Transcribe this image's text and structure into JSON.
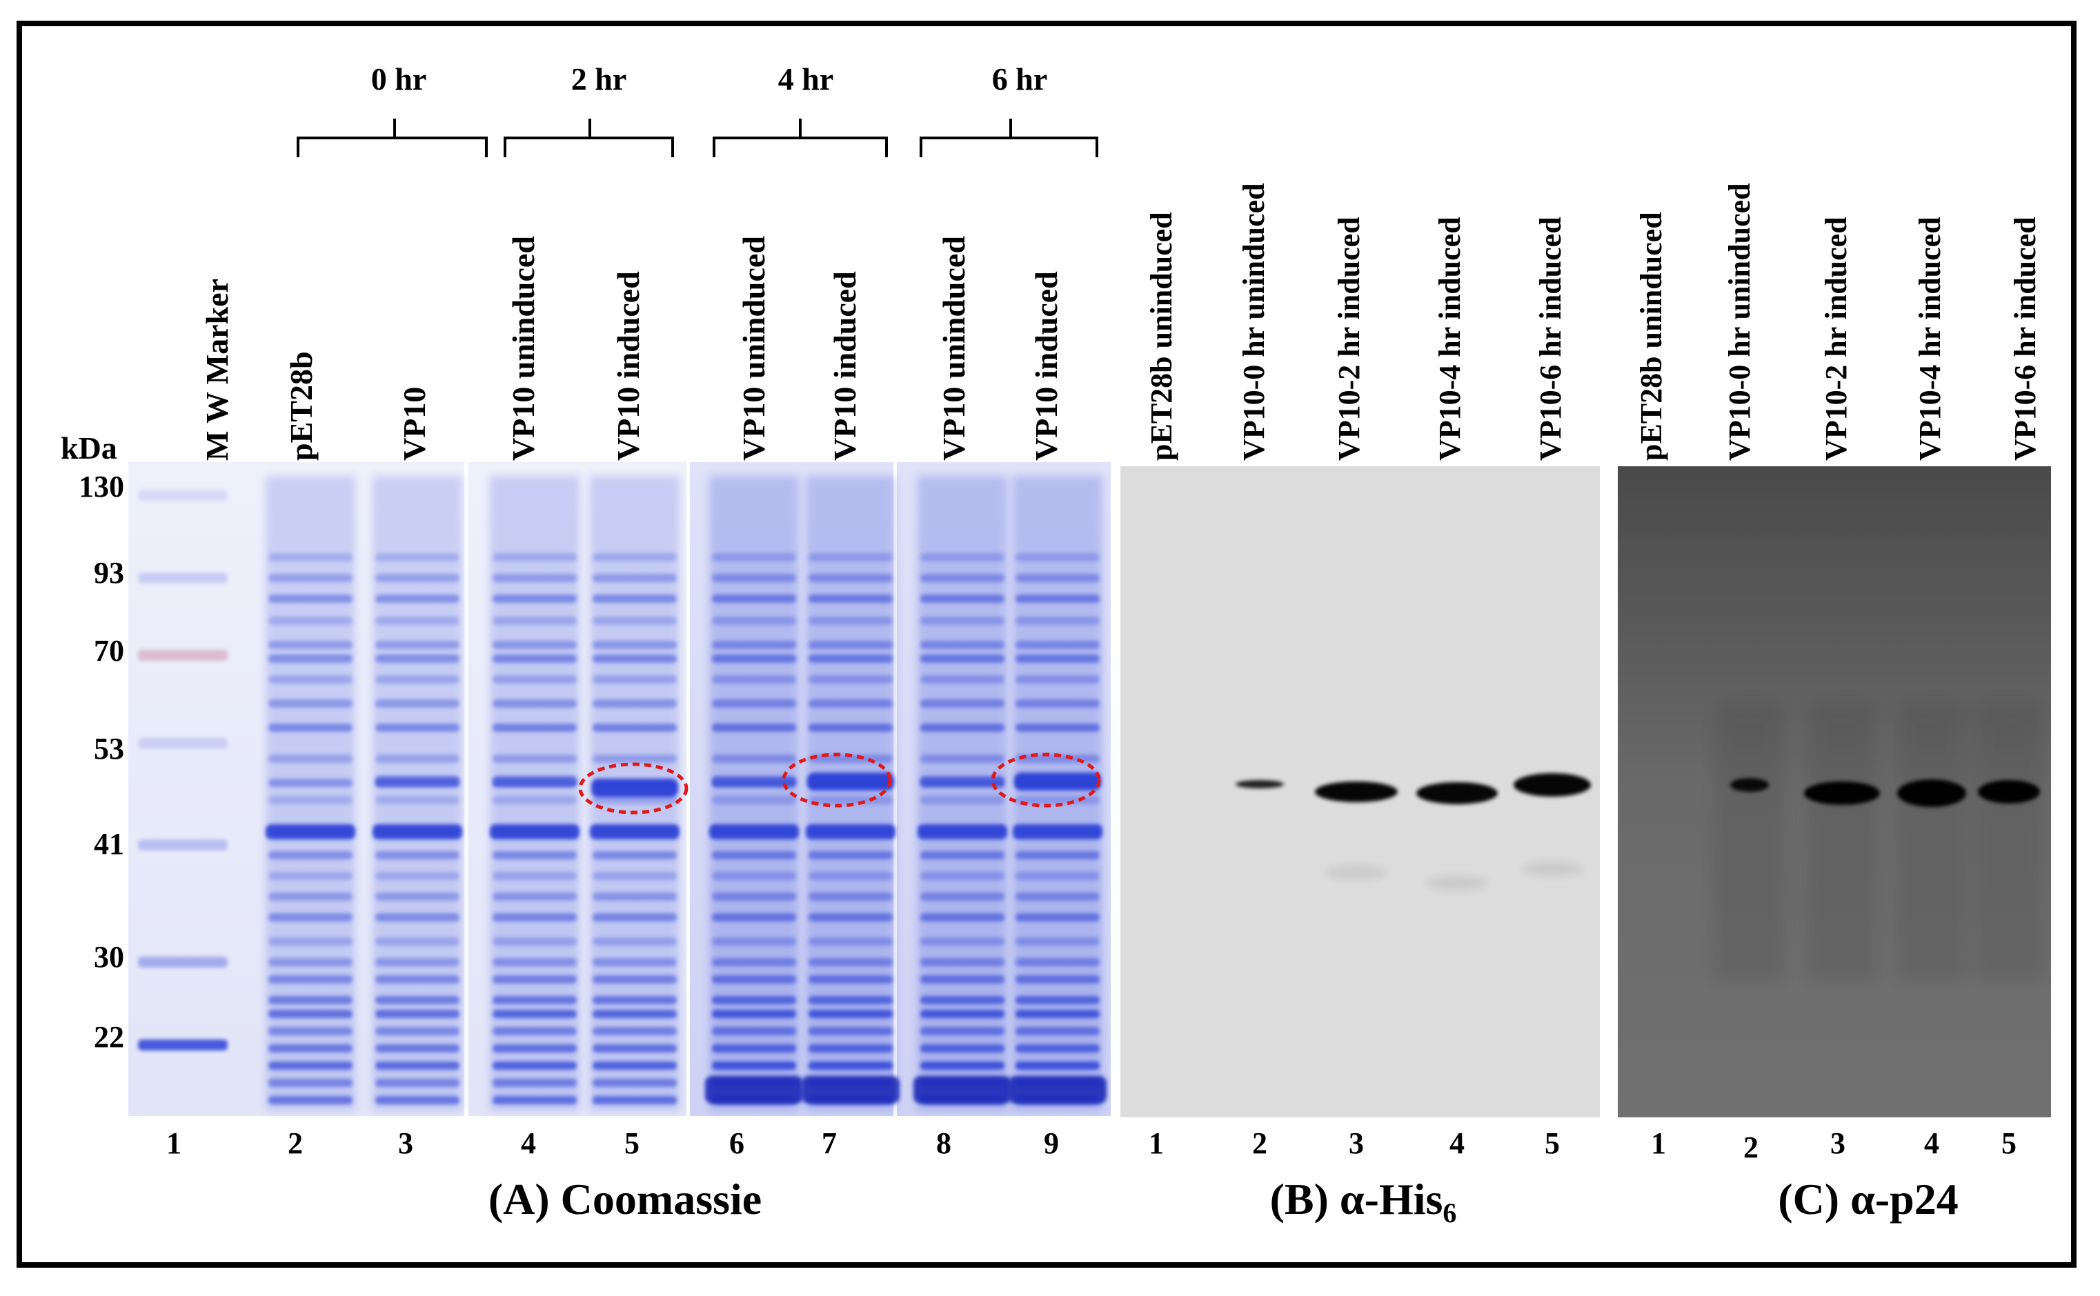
{
  "timepoints": [
    "0 hr",
    "2 hr",
    "4 hr",
    "6 hr"
  ],
  "kda_label": "kDa",
  "mw_markers": [
    "130",
    "93",
    "70",
    "53",
    "41",
    "30",
    "22"
  ],
  "panel_a": {
    "title": "(A) Coomassie",
    "lane_labels": [
      "M W Marker",
      "pET28b",
      "VP10",
      "VP10 uninduced",
      "VP10 induced",
      "VP10 uninduced",
      "VP10 induced",
      "VP10 uninduced",
      "VP10 induced"
    ],
    "lane_numbers": [
      "1",
      "2",
      "3",
      "4",
      "5",
      "6",
      "7",
      "8",
      "9"
    ]
  },
  "panel_b": {
    "title_prefix": "(B) α-His",
    "title_subscript": "6",
    "lane_labels": [
      "pET28b  uninduced",
      "VP10-0  hr uninduced",
      "VP10-2  hr induced",
      "VP10-4  hr induced",
      "VP10-6  hr induced"
    ],
    "lane_numbers": [
      "1",
      "2",
      "3",
      "4",
      "5"
    ]
  },
  "panel_c": {
    "title": "(C) α-p24",
    "lane_labels": [
      "pET28b  uninduced",
      "VP10-0  hr uninduced",
      "VP10-2  hr induced",
      "VP10-4  hr induced",
      "VP10-6  hr induced"
    ],
    "lane_numbers": [
      "1",
      "2",
      "3",
      "4",
      "5"
    ]
  },
  "colors": {
    "coomassie_stain": "#2b3fd6",
    "highlight_ring": "#e01818",
    "blot_b_background": "#dcdcdc",
    "blot_c_background": "#5e5e5e",
    "frame": "#000000"
  }
}
